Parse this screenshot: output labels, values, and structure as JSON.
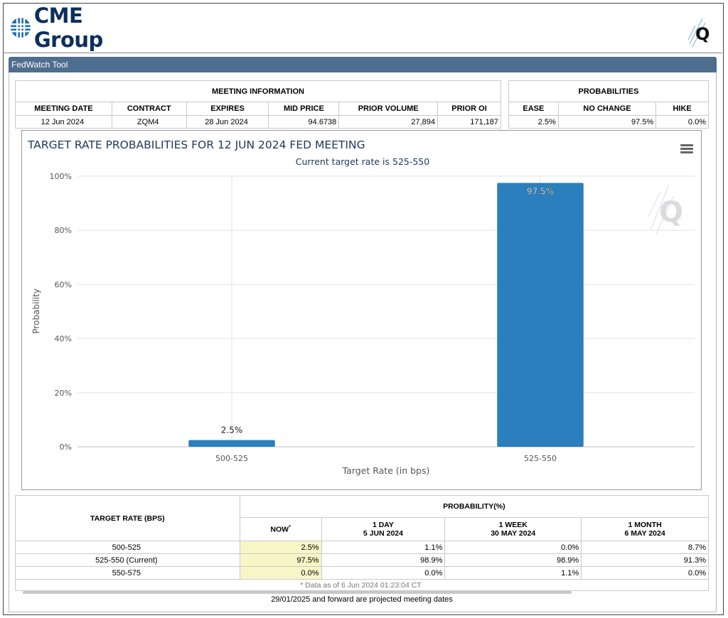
{
  "header": {
    "logo_text": "CME Group"
  },
  "toolbar": {
    "title": "FedWatch Tool"
  },
  "meeting_info": {
    "group_title": "MEETING INFORMATION",
    "columns": [
      "MEETING DATE",
      "CONTRACT",
      "EXPIRES",
      "MID PRICE",
      "PRIOR VOLUME",
      "PRIOR OI"
    ],
    "values": [
      "12 Jun 2024",
      "ZQM4",
      "28 Jun 2024",
      "94.6738",
      "27,894",
      "171,187"
    ]
  },
  "probabilities": {
    "group_title": "PROBABILITIES",
    "columns": [
      "EASE",
      "NO CHANGE",
      "HIKE"
    ],
    "values": [
      "2.5%",
      "97.5%",
      "0.0%"
    ]
  },
  "chart_data": {
    "type": "bar",
    "title": "TARGET RATE PROBABILITIES FOR 12 JUN 2024 FED MEETING",
    "subtitle": "Current target rate is 525-550",
    "xlabel": "Target Rate (in bps)",
    "ylabel": "Probability",
    "categories": [
      "500-525",
      "525-550"
    ],
    "values": [
      2.5,
      97.5
    ],
    "data_labels": [
      "2.5%",
      "97.5%"
    ],
    "ylim": [
      0,
      100
    ],
    "yticks": [
      0,
      20,
      40,
      60,
      80,
      100
    ],
    "ytick_labels": [
      "0%",
      "20%",
      "40%",
      "60%",
      "80%",
      "100%"
    ],
    "bar_color": "#2b7fbd",
    "grid": true,
    "legend": "none"
  },
  "history_table": {
    "rate_header": "TARGET RATE (BPS)",
    "prob_header": "PROBABILITY(%)",
    "cols": [
      {
        "line1": "NOW",
        "line2": ""
      },
      {
        "line1": "1 DAY",
        "line2": "5 JUN 2024"
      },
      {
        "line1": "1 WEEK",
        "line2": "30 MAY 2024"
      },
      {
        "line1": "1 MONTH",
        "line2": "6 MAY 2024"
      }
    ],
    "rows": [
      {
        "rate": "500-525",
        "now": "2.5%",
        "d1": "1.1%",
        "w1": "0.0%",
        "m1": "8.7%"
      },
      {
        "rate": "525-550 (Current)",
        "now": "97.5%",
        "d1": "98.9%",
        "w1": "98.9%",
        "m1": "91.3%"
      },
      {
        "rate": "550-575",
        "now": "0.0%",
        "d1": "0.0%",
        "w1": "1.1%",
        "m1": "0.0%"
      }
    ],
    "note": "* Data as of 6 Jun 2024 01:23:04 CT"
  },
  "footnote": "29/01/2025 and forward are projected meeting dates"
}
